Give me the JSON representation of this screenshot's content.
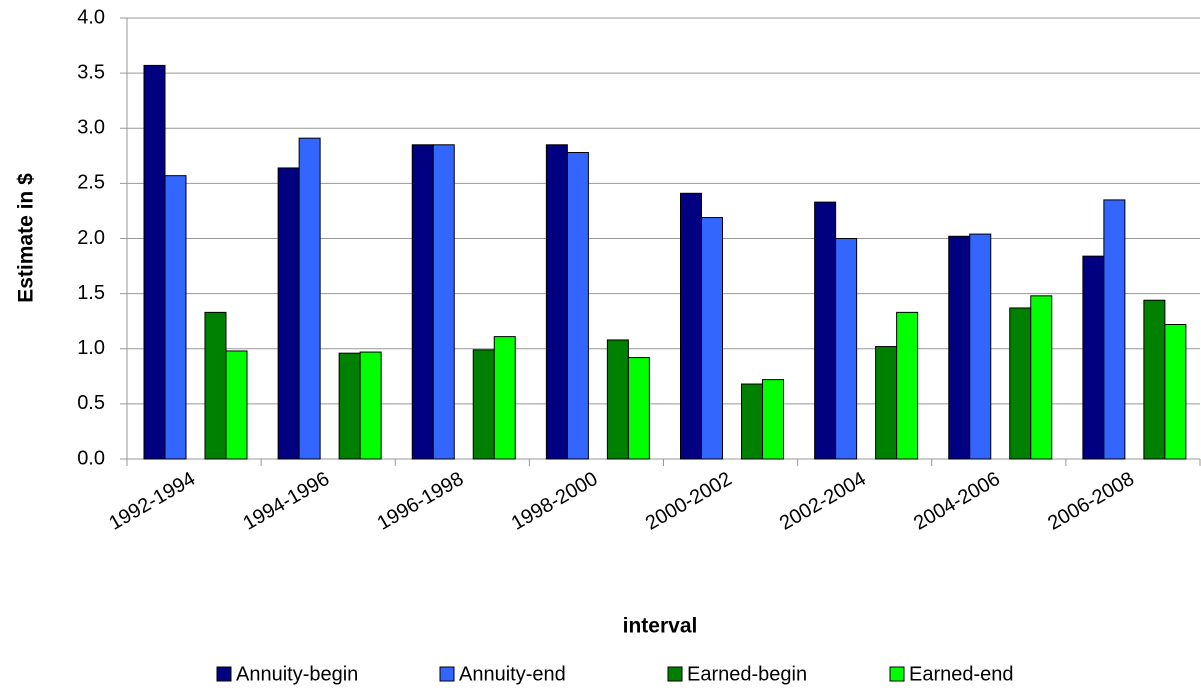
{
  "chart_data": {
    "type": "bar",
    "xlabel": "interval",
    "ylabel": "Estimate in $",
    "categories": [
      "1992-1994",
      "1994-1996",
      "1996-1998",
      "1998-2000",
      "2000-2002",
      "2002-2004",
      "2004-2006",
      "2006-2008"
    ],
    "series": [
      {
        "name": "Annuity-begin",
        "color": "#000080",
        "values": [
          3.57,
          2.64,
          2.85,
          2.85,
          2.41,
          2.33,
          2.02,
          1.84
        ]
      },
      {
        "name": "Annuity-end",
        "color": "#3366ff",
        "values": [
          2.57,
          2.91,
          2.85,
          2.78,
          2.19,
          2.0,
          2.04,
          2.35
        ]
      },
      {
        "name": "Earned-begin",
        "color": "#008000",
        "values": [
          1.33,
          0.96,
          0.99,
          1.08,
          0.68,
          1.02,
          1.37,
          1.44
        ]
      },
      {
        "name": "Earned-end",
        "color": "#00ff00",
        "values": [
          0.98,
          0.97,
          1.11,
          0.92,
          0.72,
          1.33,
          1.48,
          1.22
        ]
      }
    ],
    "ylim": [
      0,
      4
    ],
    "yticks": [
      {
        "value": 0,
        "label": "0.0"
      },
      {
        "value": 0.5,
        "label": "0.5"
      },
      {
        "value": 1,
        "label": "1.0"
      },
      {
        "value": 1.5,
        "label": "1.5"
      },
      {
        "value": 2,
        "label": "2.0"
      },
      {
        "value": 2.5,
        "label": "2.5"
      },
      {
        "value": 3,
        "label": "3.0"
      },
      {
        "value": 3.5,
        "label": "3.5"
      },
      {
        "value": 4,
        "label": "4.0"
      }
    ],
    "grid": true,
    "legend": "bottom"
  }
}
